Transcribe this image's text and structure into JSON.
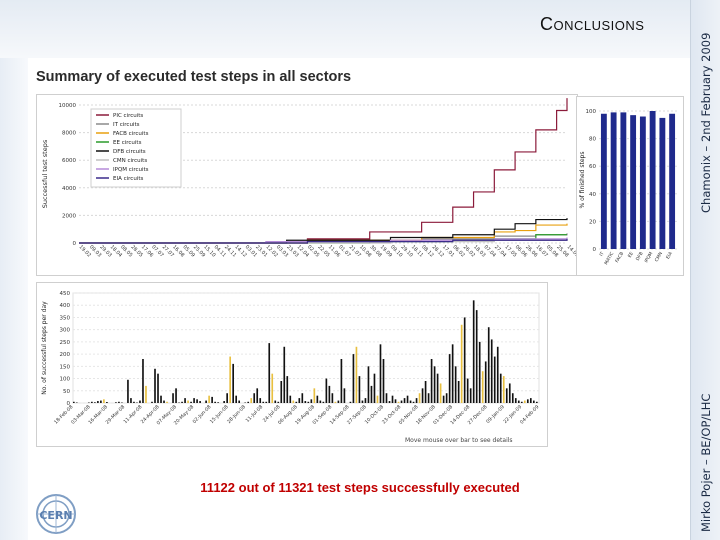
{
  "slide": {
    "title": "Conclusions",
    "side_text_top": "Chamonix – 2nd February 2009",
    "side_text_bottom": "Mirko Pojer – BE/OP/LHC",
    "summary": "11122 out of 11321 test steps successfully executed",
    "logo": "CERN"
  },
  "chart_data": [
    {
      "type": "line",
      "title": "Summary of executed test steps in all sectors",
      "ylabel": "Successful test steps",
      "ylim": [
        0,
        10000
      ],
      "y_ticks": [
        "0",
        "2000",
        "4000",
        "6000",
        "8000",
        "10000"
      ],
      "x_ticks": [
        "19.02",
        "09.03",
        "29.03",
        "18.04",
        "08.05",
        "28.05",
        "17.06",
        "07.07",
        "27.07",
        "16.08",
        "05.09",
        "25.09",
        "15.10",
        "04.11",
        "24.11",
        "14.12",
        "03.01",
        "23.01",
        "12.02",
        "03.03",
        "23.03",
        "12.04",
        "02.05",
        "22.05",
        "11.06",
        "01.07",
        "21.07",
        "10.08",
        "30.08",
        "19.09",
        "09.10",
        "29.10",
        "18.11",
        "08.12",
        "28.12",
        "17.01",
        "06.02",
        "26.02",
        "18.03",
        "07.04",
        "27.04",
        "17.05",
        "06.06",
        "26.06",
        "16.07",
        "05.08",
        "25.08",
        "14.09"
      ],
      "legend": {
        "placement": "top-left"
      },
      "series": [
        {
          "name": "PIC circuits",
          "color": "#8b1a3a",
          "points": [
            [
              0,
              0
            ],
            [
              22,
              300
            ],
            [
              28,
              800
            ],
            [
              33,
              1500
            ],
            [
              36,
              2600
            ],
            [
              38,
              3700
            ],
            [
              40,
              5300
            ],
            [
              42,
              6600
            ],
            [
              44,
              8200
            ],
            [
              46,
              9600
            ],
            [
              47,
              10500
            ]
          ]
        },
        {
          "name": "IT circuits",
          "color": "#8a8a8a",
          "points": [
            [
              0,
              0
            ],
            [
              22,
              200
            ],
            [
              33,
              300
            ],
            [
              40,
              500
            ],
            [
              44,
              600
            ],
            [
              47,
              700
            ]
          ]
        },
        {
          "name": "FACB circuits",
          "color": "#e8a010",
          "points": [
            [
              0,
              0
            ],
            [
              22,
              200
            ],
            [
              33,
              400
            ],
            [
              40,
              800
            ],
            [
              42,
              900
            ],
            [
              44,
              1300
            ],
            [
              47,
              1400
            ]
          ]
        },
        {
          "name": "EE circuits",
          "color": "#2a9a2a",
          "points": [
            [
              0,
              0
            ],
            [
              28,
              100
            ],
            [
              36,
              200
            ],
            [
              40,
              300
            ],
            [
              44,
              600
            ],
            [
              47,
              600
            ]
          ]
        },
        {
          "name": "DFB circuits",
          "color": "#111111",
          "points": [
            [
              0,
              0
            ],
            [
              20,
              200
            ],
            [
              30,
              400
            ],
            [
              36,
              600
            ],
            [
              40,
              1000
            ],
            [
              42,
              1400
            ],
            [
              44,
              1700
            ],
            [
              47,
              1800
            ]
          ]
        },
        {
          "name": "CMN circuits",
          "color": "#c0c0c0",
          "points": [
            [
              0,
              0
            ],
            [
              30,
              100
            ],
            [
              40,
              200
            ],
            [
              47,
              300
            ]
          ]
        },
        {
          "name": "IPQM circuits",
          "color": "#b58bd8",
          "points": [
            [
              0,
              0
            ],
            [
              18,
              100
            ],
            [
              30,
              200
            ],
            [
              40,
              300
            ],
            [
              47,
              400
            ]
          ]
        },
        {
          "name": "EIA circuits",
          "color": "#3b2b8a",
          "points": [
            [
              0,
              0
            ],
            [
              22,
              100
            ],
            [
              36,
              200
            ],
            [
              47,
              300
            ]
          ]
        }
      ]
    },
    {
      "type": "bar",
      "ylabel": "% of finished steps",
      "ylim": [
        0,
        100
      ],
      "y_ticks": [
        "0",
        "20",
        "40",
        "60",
        "80",
        "100"
      ],
      "categories": [
        "IT",
        "MATIC",
        "FACB",
        "EE",
        "DFB",
        "IPQM",
        "CMN",
        "EIA"
      ],
      "values": [
        98,
        99,
        99,
        97,
        96,
        100,
        95,
        98
      ],
      "color": "#1f2a8c"
    },
    {
      "type": "bar",
      "ylabel": "No. of successful steps per day",
      "ylim": [
        0,
        450
      ],
      "y_ticks": [
        "0",
        "50",
        "100",
        "150",
        "200",
        "250",
        "300",
        "350",
        "400",
        "450"
      ],
      "note": "Move mouse over bar to see details",
      "x_ticks": [
        "18-Feb-08",
        "03-Mar-08",
        "16-Mar-08",
        "29-Mar-08",
        "11-Apr-08",
        "24-Apr-08",
        "07-May-08",
        "20-May-08",
        "02-Jun-08",
        "15-Jun-08",
        "28-Jun-08",
        "11-Jul-08",
        "24-Jul-08",
        "06-Aug-08",
        "19-Aug-08",
        "01-Sep-08",
        "14-Sep-08",
        "27-Sep-08",
        "10-Oct-08",
        "23-Oct-08",
        "05-Nov-08",
        "18-Nov-08",
        "01-Dec-08",
        "14-Dec-08",
        "27-Dec-08",
        "09-Jan-09",
        "22-Jan-09",
        "04-Feb-09"
      ],
      "values": [
        5,
        2,
        0,
        0,
        0,
        2,
        5,
        3,
        8,
        10,
        15,
        4,
        0,
        0,
        3,
        5,
        2,
        0,
        95,
        20,
        5,
        2,
        10,
        180,
        70,
        0,
        5,
        140,
        120,
        30,
        10,
        5,
        0,
        40,
        60,
        2,
        5,
        20,
        10,
        5,
        20,
        15,
        8,
        0,
        10,
        30,
        25,
        5,
        3,
        0,
        8,
        40,
        190,
        160,
        30,
        10,
        0,
        2,
        5,
        20,
        40,
        60,
        20,
        5,
        5,
        245,
        120,
        10,
        5,
        90,
        230,
        110,
        30,
        10,
        5,
        20,
        40,
        8,
        5,
        15,
        60,
        30,
        10,
        5,
        100,
        70,
        40,
        5,
        10,
        180,
        60,
        0,
        5,
        200,
        230,
        110,
        10,
        20,
        150,
        70,
        120,
        30,
        240,
        180,
        40,
        8,
        30,
        15,
        5,
        10,
        20,
        30,
        10,
        5,
        20,
        40,
        60,
        90,
        40,
        180,
        150,
        120,
        80,
        30,
        40,
        200,
        240,
        150,
        90,
        320,
        350,
        100,
        60,
        420,
        380,
        250,
        130,
        170,
        310,
        260,
        190,
        230,
        120,
        110,
        60,
        80,
        40,
        20,
        10,
        5,
        10,
        15,
        20,
        10,
        5
      ],
      "colors": {
        "bar": "#111111",
        "accent": "#e8c040"
      }
    }
  ]
}
